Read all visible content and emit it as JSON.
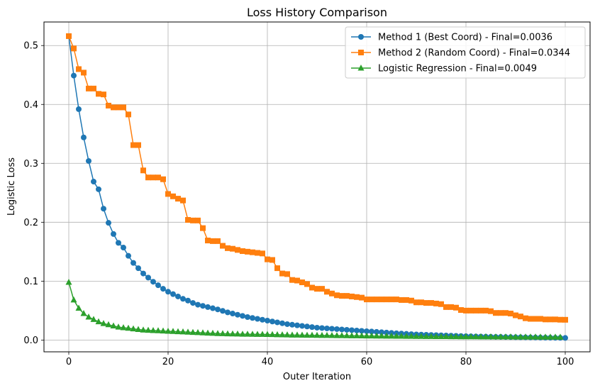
{
  "chart_data": {
    "type": "line",
    "title": "Loss History Comparison",
    "xlabel": "Outer Iteration",
    "ylabel": "Logistic Loss",
    "xlim": [
      -5,
      105
    ],
    "ylim": [
      -0.02,
      0.54
    ],
    "xticks": [
      0,
      20,
      40,
      60,
      80,
      100
    ],
    "yticks": [
      0.0,
      0.1,
      0.2,
      0.3,
      0.4,
      0.5
    ],
    "xtick_labels": [
      "0",
      "20",
      "40",
      "60",
      "80",
      "100"
    ],
    "ytick_labels": [
      "0.0",
      "0.1",
      "0.2",
      "0.3",
      "0.4",
      "0.5"
    ],
    "grid": true,
    "legend_position": "top-right",
    "series": [
      {
        "name": "Method 1 (Best Coord) - Final=0.0036",
        "color": "#1f77b4",
        "marker": "circle",
        "anchors": [
          [
            0,
            0.516
          ],
          [
            1,
            0.449
          ],
          [
            2,
            0.392
          ],
          [
            3,
            0.344
          ],
          [
            4,
            0.304
          ],
          [
            5,
            0.269
          ],
          [
            6,
            0.256
          ],
          [
            7,
            0.223
          ],
          [
            8,
            0.199
          ],
          [
            9,
            0.18
          ],
          [
            10,
            0.165
          ],
          [
            11,
            0.157
          ],
          [
            12,
            0.143
          ],
          [
            13,
            0.131
          ],
          [
            14,
            0.122
          ],
          [
            15,
            0.113
          ],
          [
            16,
            0.106
          ],
          [
            17,
            0.099
          ],
          [
            18,
            0.093
          ],
          [
            19,
            0.087
          ],
          [
            20,
            0.082
          ],
          [
            21,
            0.078
          ],
          [
            22,
            0.074
          ],
          [
            23,
            0.07
          ],
          [
            24,
            0.067
          ],
          [
            25,
            0.063
          ],
          [
            26,
            0.06
          ],
          [
            27,
            0.058
          ],
          [
            28,
            0.056
          ],
          [
            30,
            0.052
          ],
          [
            32,
            0.047
          ],
          [
            34,
            0.043
          ],
          [
            36,
            0.039
          ],
          [
            38,
            0.036
          ],
          [
            40,
            0.033
          ],
          [
            42,
            0.03
          ],
          [
            44,
            0.027
          ],
          [
            46,
            0.025
          ],
          [
            48,
            0.023
          ],
          [
            50,
            0.021
          ],
          [
            55,
            0.018
          ],
          [
            60,
            0.015
          ],
          [
            65,
            0.012
          ],
          [
            70,
            0.0095
          ],
          [
            75,
            0.008
          ],
          [
            80,
            0.0065
          ],
          [
            85,
            0.0055
          ],
          [
            90,
            0.0048
          ],
          [
            95,
            0.0042
          ],
          [
            100,
            0.0036
          ]
        ]
      },
      {
        "name": "Method 2 (Random Coord) - Final=0.0344",
        "color": "#ff7f0e",
        "marker": "square",
        "anchors": [
          [
            0,
            0.516
          ],
          [
            1,
            0.495
          ],
          [
            2,
            0.46
          ],
          [
            3,
            0.454
          ],
          [
            4,
            0.427
          ],
          [
            5,
            0.427
          ],
          [
            6,
            0.418
          ],
          [
            7,
            0.417
          ],
          [
            8,
            0.398
          ],
          [
            9,
            0.395
          ],
          [
            10,
            0.395
          ],
          [
            11,
            0.395
          ],
          [
            12,
            0.383
          ],
          [
            13,
            0.331
          ],
          [
            14,
            0.331
          ],
          [
            15,
            0.288
          ],
          [
            16,
            0.276
          ],
          [
            17,
            0.276
          ],
          [
            18,
            0.276
          ],
          [
            19,
            0.273
          ],
          [
            20,
            0.248
          ],
          [
            21,
            0.244
          ],
          [
            22,
            0.24
          ],
          [
            23,
            0.237
          ],
          [
            24,
            0.204
          ],
          [
            25,
            0.203
          ],
          [
            26,
            0.203
          ],
          [
            27,
            0.19
          ],
          [
            28,
            0.169
          ],
          [
            29,
            0.168
          ],
          [
            30,
            0.168
          ],
          [
            31,
            0.16
          ],
          [
            32,
            0.156
          ],
          [
            33,
            0.155
          ],
          [
            34,
            0.153
          ],
          [
            35,
            0.151
          ],
          [
            36,
            0.15
          ],
          [
            37,
            0.149
          ],
          [
            38,
            0.148
          ],
          [
            39,
            0.147
          ],
          [
            40,
            0.137
          ],
          [
            41,
            0.136
          ],
          [
            42,
            0.122
          ],
          [
            43,
            0.113
          ],
          [
            44,
            0.112
          ],
          [
            45,
            0.102
          ],
          [
            46,
            0.101
          ],
          [
            47,
            0.098
          ],
          [
            48,
            0.095
          ],
          [
            49,
            0.089
          ],
          [
            50,
            0.087
          ],
          [
            51,
            0.087
          ],
          [
            52,
            0.082
          ],
          [
            53,
            0.079
          ],
          [
            54,
            0.076
          ],
          [
            55,
            0.075
          ],
          [
            56,
            0.075
          ],
          [
            57,
            0.074
          ],
          [
            58,
            0.073
          ],
          [
            59,
            0.072
          ],
          [
            60,
            0.069
          ],
          [
            61,
            0.069
          ],
          [
            62,
            0.069
          ],
          [
            63,
            0.069
          ],
          [
            64,
            0.069
          ],
          [
            65,
            0.069
          ],
          [
            66,
            0.069
          ],
          [
            67,
            0.068
          ],
          [
            68,
            0.068
          ],
          [
            69,
            0.067
          ],
          [
            70,
            0.064
          ],
          [
            71,
            0.064
          ],
          [
            72,
            0.063
          ],
          [
            73,
            0.063
          ],
          [
            74,
            0.062
          ],
          [
            75,
            0.061
          ],
          [
            76,
            0.056
          ],
          [
            77,
            0.056
          ],
          [
            78,
            0.055
          ],
          [
            79,
            0.051
          ],
          [
            80,
            0.05
          ],
          [
            81,
            0.05
          ],
          [
            82,
            0.05
          ],
          [
            83,
            0.05
          ],
          [
            84,
            0.05
          ],
          [
            85,
            0.049
          ],
          [
            86,
            0.046
          ],
          [
            87,
            0.046
          ],
          [
            88,
            0.046
          ],
          [
            89,
            0.045
          ],
          [
            90,
            0.042
          ],
          [
            91,
            0.04
          ],
          [
            92,
            0.037
          ],
          [
            93,
            0.036
          ],
          [
            94,
            0.036
          ],
          [
            95,
            0.036
          ],
          [
            96,
            0.035
          ],
          [
            97,
            0.035
          ],
          [
            98,
            0.035
          ],
          [
            99,
            0.0345
          ],
          [
            100,
            0.0344
          ]
        ]
      },
      {
        "name": "Logistic Regression - Final=0.0049",
        "color": "#2ca02c",
        "marker": "triangle",
        "anchors": [
          [
            0,
            0.098
          ],
          [
            1,
            0.068
          ],
          [
            2,
            0.054
          ],
          [
            3,
            0.045
          ],
          [
            4,
            0.039
          ],
          [
            5,
            0.035
          ],
          [
            6,
            0.031
          ],
          [
            7,
            0.028
          ],
          [
            8,
            0.026
          ],
          [
            9,
            0.024
          ],
          [
            10,
            0.022
          ],
          [
            12,
            0.02
          ],
          [
            15,
            0.017
          ],
          [
            20,
            0.015
          ],
          [
            25,
            0.013
          ],
          [
            30,
            0.011
          ],
          [
            35,
            0.01
          ],
          [
            40,
            0.0095
          ],
          [
            45,
            0.0085
          ],
          [
            50,
            0.008
          ],
          [
            60,
            0.007
          ],
          [
            70,
            0.0062
          ],
          [
            80,
            0.0056
          ],
          [
            90,
            0.0052
          ],
          [
            99,
            0.0049
          ]
        ]
      }
    ]
  }
}
